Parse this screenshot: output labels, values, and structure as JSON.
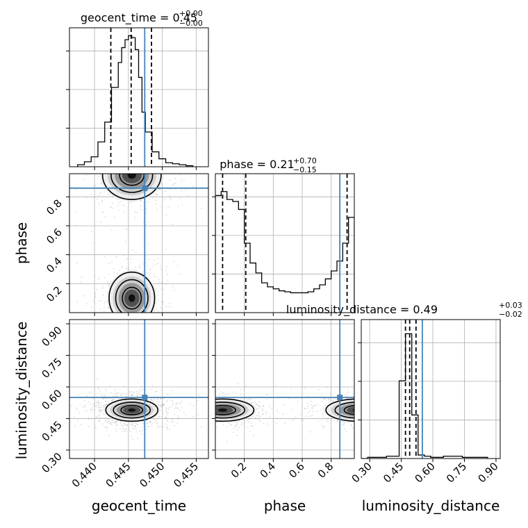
{
  "colors": {
    "truth": "#4682b4",
    "line": "#000000",
    "grid": "#b0b0b0",
    "scatter": "#9a9a9a"
  },
  "titles": {
    "geocent_time": {
      "name": "geocent_time",
      "value": "0.45",
      "plus": "+0.00",
      "minus": "−0.00"
    },
    "phase": {
      "name": "phase",
      "value": "0.21",
      "plus": "+0.70",
      "minus": "−0.15"
    },
    "luminosity_distance": {
      "name": "luminosity_distance",
      "value": "0.49",
      "plus": "+0.03",
      "minus": "−0.02"
    }
  },
  "axis_labels": {
    "x0": "geocent_time",
    "x1": "phase",
    "x2": "luminosity_distance",
    "y1": "phase",
    "y2": "luminosity_distance"
  },
  "chart_data": {
    "type": "corner",
    "parameters": [
      "geocent_time",
      "phase",
      "luminosity_distance"
    ],
    "ranges": {
      "geocent_time": [
        0.4363,
        0.4568
      ],
      "phase": [
        0.0,
        0.96
      ],
      "luminosity_distance": [
        0.26,
        0.92
      ]
    },
    "ticks": {
      "geocent_time": [
        0.44,
        0.445,
        0.45,
        0.455
      ],
      "phase": [
        0.2,
        0.4,
        0.6,
        0.8
      ],
      "luminosity_distance": [
        0.3,
        0.45,
        0.6,
        0.75,
        0.9
      ]
    },
    "tick_labels": {
      "geocent_time": [
        "0.440",
        "0.445",
        "0.450",
        "0.455"
      ],
      "phase": [
        "0.2",
        "0.4",
        "0.6",
        "0.8"
      ],
      "luminosity_distance": [
        "0.30",
        "0.45",
        "0.60",
        "0.75",
        "0.90"
      ]
    },
    "truths": {
      "geocent_time": 0.4474,
      "phase": 0.86,
      "luminosity_distance": 0.55
    },
    "quantiles": {
      "geocent_time": [
        0.4424,
        0.4454,
        0.4484
      ],
      "phase": [
        0.05,
        0.21,
        0.91
      ],
      "luminosity_distance": [
        0.47,
        0.49,
        0.52
      ]
    },
    "histograms": {
      "geocent_time": {
        "edges": [
          0.4375,
          0.4385,
          0.4395,
          0.4405,
          0.4415,
          0.4425,
          0.4435,
          0.444,
          0.4445,
          0.445,
          0.4455,
          0.446,
          0.4465,
          0.447,
          0.4475,
          0.4485,
          0.4495,
          0.4505,
          0.4515,
          0.4525,
          0.4535,
          0.4545
        ],
        "counts": [
          2,
          5,
          10,
          25,
          45,
          80,
          105,
          120,
          128,
          132,
          130,
          118,
          90,
          55,
          35,
          15,
          8,
          4,
          3,
          2,
          1
        ],
        "ymax": 140
      },
      "phase": {
        "edges": [
          0.0,
          0.04,
          0.08,
          0.12,
          0.16,
          0.2,
          0.24,
          0.28,
          0.32,
          0.36,
          0.4,
          0.44,
          0.48,
          0.52,
          0.56,
          0.6,
          0.64,
          0.68,
          0.72,
          0.76,
          0.8,
          0.84,
          0.88,
          0.92,
          0.96
        ],
        "counts": [
          118,
          122,
          114,
          112,
          104,
          70,
          50,
          40,
          30,
          26,
          24,
          22,
          21,
          20,
          20,
          20,
          21,
          24,
          28,
          34,
          42,
          52,
          70,
          96
        ],
        "ymax": 140
      },
      "luminosity_distance": {
        "edges": [
          0.26,
          0.29,
          0.32,
          0.35,
          0.38,
          0.41,
          0.44,
          0.47,
          0.5,
          0.53,
          0.56,
          0.59,
          0.62,
          0.65,
          0.68,
          0.71,
          0.74,
          0.77,
          0.8,
          0.83,
          0.86
        ],
        "counts": [
          0,
          1,
          1,
          1,
          2,
          2,
          66,
          106,
          37,
          3,
          2,
          1,
          1,
          2,
          2,
          2,
          1,
          1,
          1,
          1
        ],
        "ymax": 118
      }
    },
    "density_2d": [
      {
        "x": "geocent_time",
        "y": "phase",
        "clusters": [
          {
            "cx": 0.4455,
            "cy": 0.1,
            "sx": 0.0014,
            "sy": 0.075
          },
          {
            "cx": 0.4455,
            "cy": 0.95,
            "sx": 0.0018,
            "sy": 0.07
          }
        ]
      },
      {
        "x": "geocent_time",
        "y": "luminosity_distance",
        "clusters": [
          {
            "cx": 0.4455,
            "cy": 0.49,
            "sx": 0.0016,
            "sy": 0.022
          }
        ]
      },
      {
        "x": "phase",
        "y": "luminosity_distance",
        "clusters": [
          {
            "cx": 0.05,
            "cy": 0.49,
            "sx": 0.09,
            "sy": 0.022
          },
          {
            "cx": 0.98,
            "cy": 0.49,
            "sx": 0.09,
            "sy": 0.022
          }
        ]
      }
    ]
  }
}
